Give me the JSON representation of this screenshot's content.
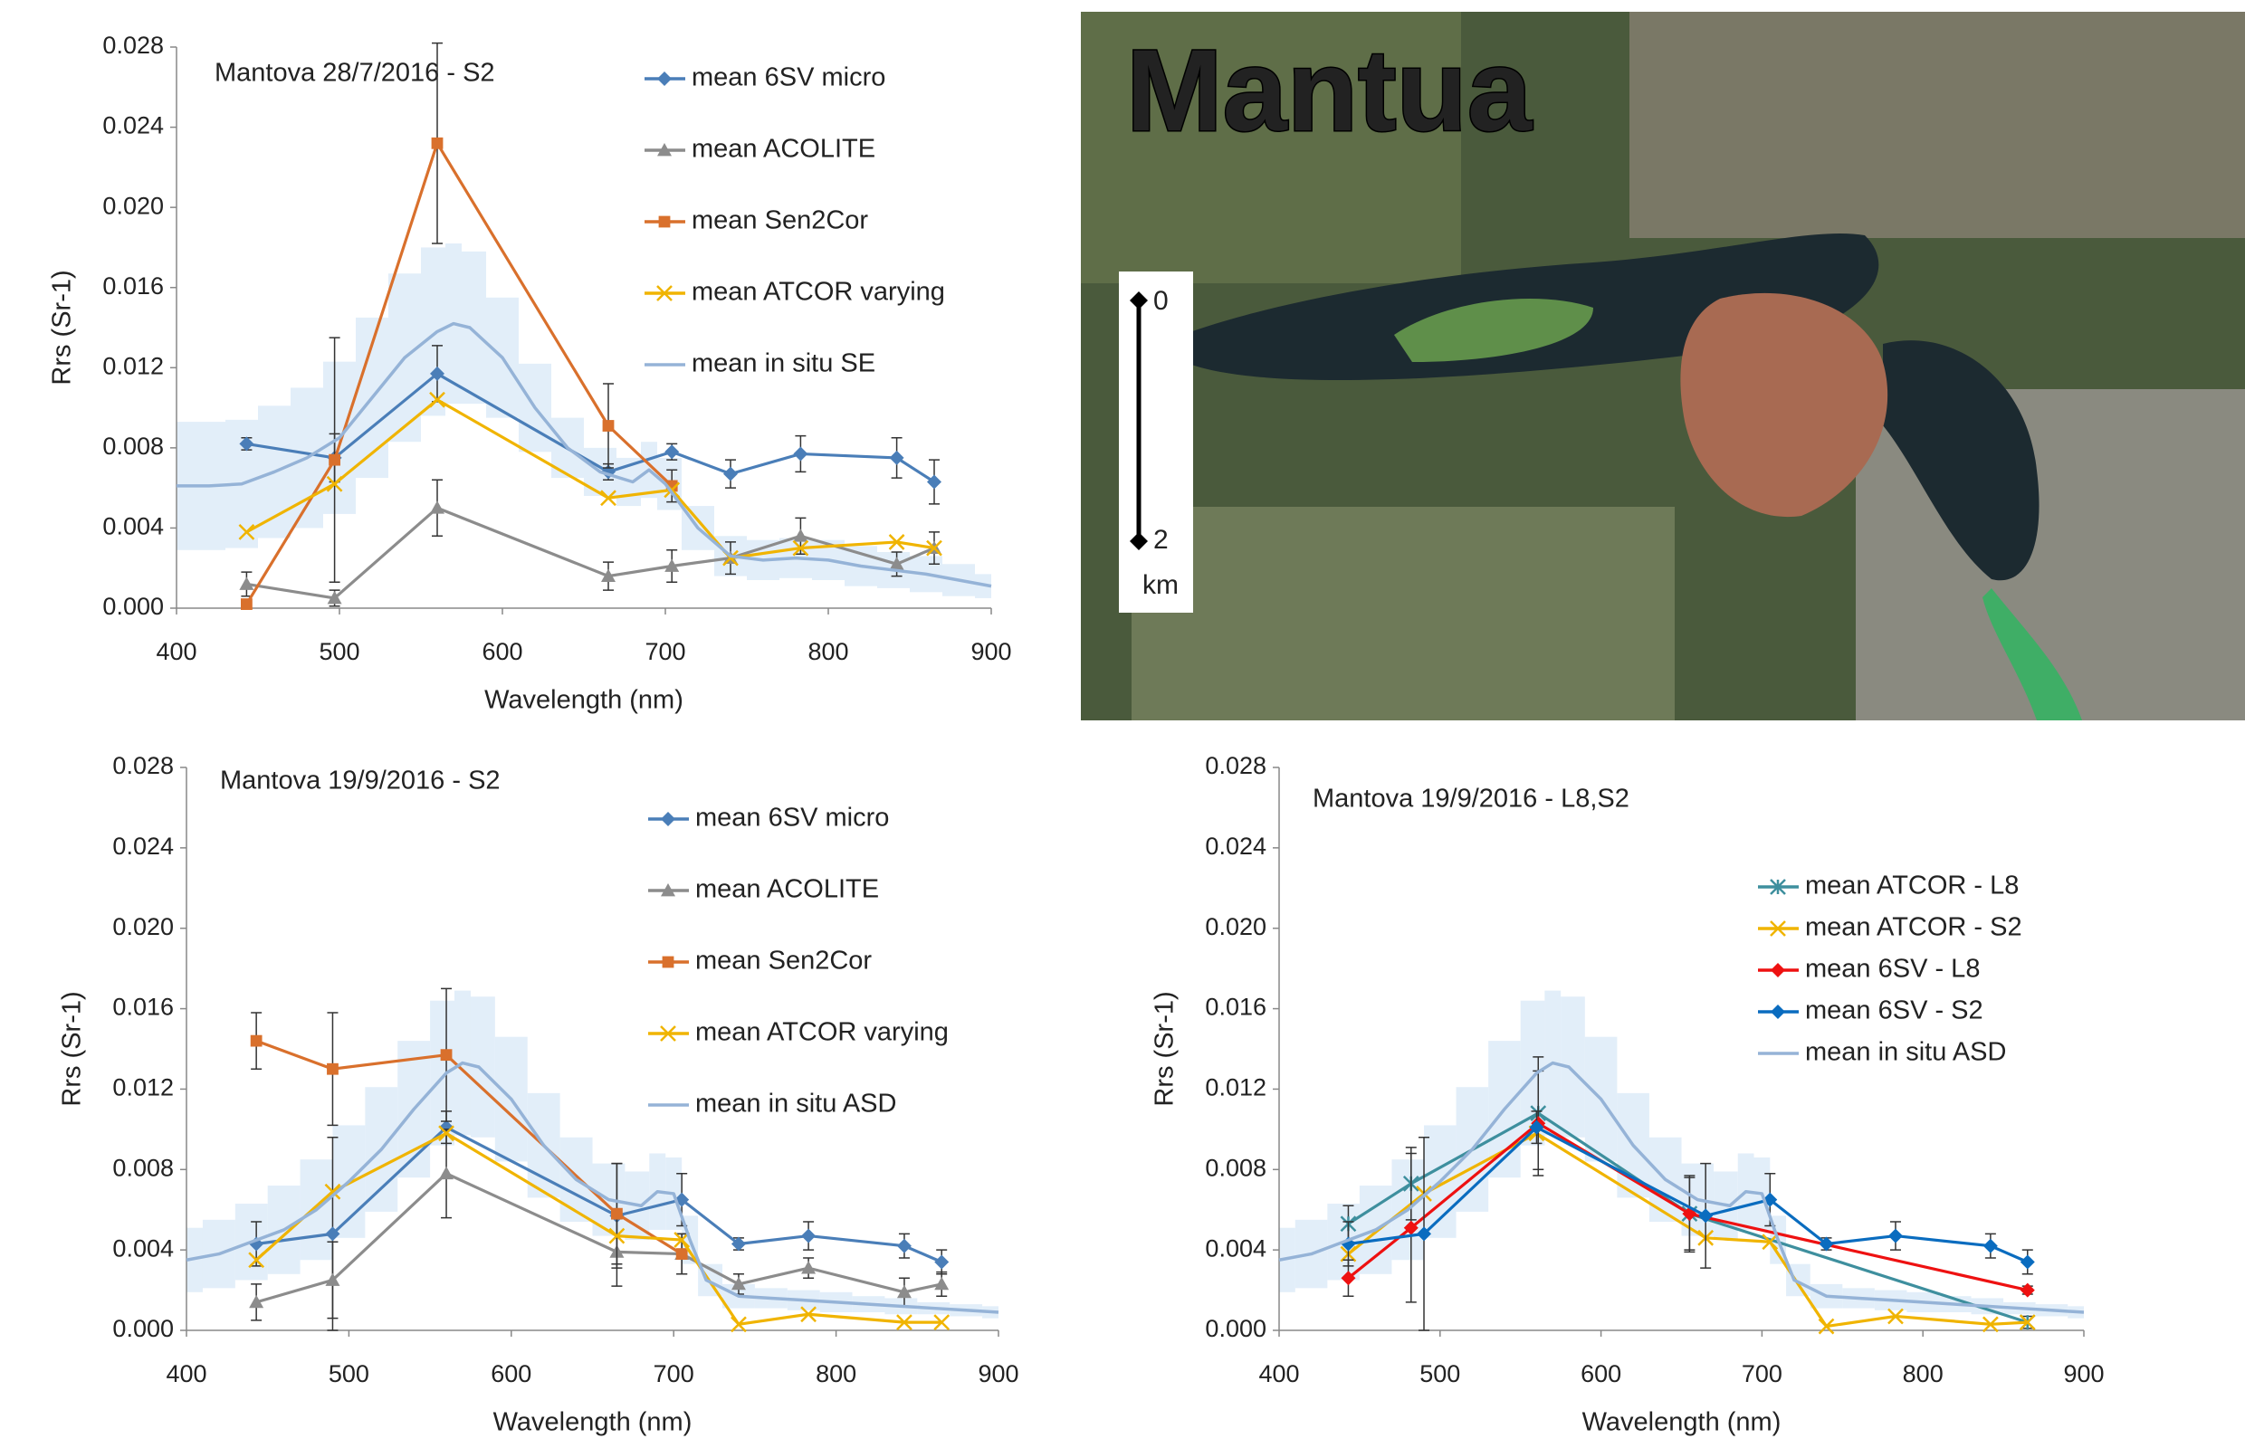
{
  "chart_data": [
    {
      "type": "line",
      "title": "Mantova 28/7/2016 - S2",
      "x_label": "Wavelength (nm)",
      "y_label": "Rrs (Sr-1)",
      "xlim": [
        400,
        900
      ],
      "xticks": [
        400,
        500,
        600,
        700,
        800,
        900
      ],
      "ylim": [
        0,
        0.028
      ],
      "yticks": [
        {
          "value": 0,
          "label": "0.000"
        },
        0.004,
        0.008,
        0.012,
        0.016,
        {
          "value": 0.02,
          "label": "0.020"
        },
        0.024,
        0.028
      ],
      "grid": false,
      "legend": "upper right",
      "series": [
        {
          "name": "mean 6SV micro",
          "color": "#4a7eb8",
          "marker": "diamond",
          "x": [
            443,
            497,
            560,
            665,
            704,
            740,
            783,
            842,
            865
          ],
          "values": [
            0.0082,
            0.0075,
            0.0117,
            0.0068,
            0.0078,
            0.0067,
            0.0077,
            0.0075,
            0.0063
          ],
          "errors": [
            0.0003,
            0.0012,
            0.0014,
            0.0004,
            0.0004,
            0.0007,
            0.0009,
            0.001,
            0.0011
          ]
        },
        {
          "name": "mean ACOLITE",
          "color": "#8c8c8c",
          "marker": "triangle",
          "x": [
            443,
            497,
            560,
            665,
            704,
            740,
            783,
            842,
            865
          ],
          "values": [
            0.0012,
            0.0005,
            0.005,
            0.0016,
            0.0021,
            0.0025,
            0.0036,
            0.0022,
            0.003
          ],
          "errors": [
            0.0006,
            0.0004,
            0.0014,
            0.0007,
            0.0008,
            0.0008,
            0.0009,
            0.0006,
            0.0008
          ]
        },
        {
          "name": "mean Sen2Cor",
          "color": "#d9702c",
          "marker": "square",
          "x": [
            443,
            497,
            560,
            665,
            704
          ],
          "values": [
            0.0002,
            0.0074,
            0.0232,
            0.0091,
            0.0061
          ],
          "errors": [
            0.0001,
            0.0061,
            0.005,
            0.0021,
            0.0008
          ]
        },
        {
          "name": "mean ATCOR varying",
          "color": "#f0b400",
          "marker": "x",
          "x": [
            443,
            497,
            560,
            665,
            704,
            740,
            783,
            842,
            865
          ],
          "values": [
            0.0038,
            0.0062,
            0.0104,
            0.0055,
            0.0059,
            0.0025,
            0.003,
            0.0033,
            0.003
          ]
        },
        {
          "name": "mean in situ SE",
          "color": "#95b3d7",
          "marker": "none",
          "x": [
            400,
            420,
            440,
            460,
            480,
            500,
            520,
            540,
            560,
            570,
            580,
            600,
            620,
            640,
            660,
            680,
            690,
            700,
            720,
            740,
            760,
            780,
            800,
            820,
            840,
            860,
            880,
            900
          ],
          "values": [
            0.0061,
            0.0061,
            0.0062,
            0.0068,
            0.0075,
            0.0085,
            0.0105,
            0.0125,
            0.0138,
            0.0142,
            0.014,
            0.0125,
            0.01,
            0.008,
            0.0068,
            0.0063,
            0.0069,
            0.0062,
            0.004,
            0.0026,
            0.0024,
            0.0025,
            0.0024,
            0.0021,
            0.0019,
            0.0017,
            0.0014,
            0.0011
          ],
          "spread": [
            0.0032,
            0.0032,
            0.0032,
            0.0033,
            0.0035,
            0.0038,
            0.004,
            0.0042,
            0.0042,
            0.004,
            0.0038,
            0.003,
            0.0022,
            0.0015,
            0.0012,
            0.0012,
            0.0014,
            0.0013,
            0.0011,
            0.001,
            0.001,
            0.001,
            0.001,
            0.001,
            0.0009,
            0.0009,
            0.0008,
            0.0006
          ]
        }
      ]
    },
    {
      "type": "line",
      "title": "Mantova 19/9/2016 - S2",
      "x_label": "Wavelength (nm)",
      "y_label": "Rrs (Sr-1)",
      "xlim": [
        400,
        900
      ],
      "xticks": [
        400,
        500,
        600,
        700,
        800,
        900
      ],
      "ylim": [
        0,
        0.028
      ],
      "yticks": [
        {
          "value": 0,
          "label": "0.000"
        },
        0.004,
        0.008,
        0.012,
        0.016,
        {
          "value": 0.02,
          "label": "0.020"
        },
        0.024,
        0.028
      ],
      "grid": false,
      "legend": "upper right",
      "series": [
        {
          "name": "mean 6SV micro",
          "color": "#4a7eb8",
          "marker": "diamond",
          "x": [
            443,
            490,
            560,
            665,
            705,
            740,
            783,
            842,
            865
          ],
          "values": [
            0.0043,
            0.0048,
            0.0101,
            0.0057,
            0.0065,
            0.0043,
            0.0047,
            0.0042,
            0.0034
          ],
          "errors": [
            0.0011,
            0.0048,
            0.0008,
            0.0026,
            0.0013,
            0.0003,
            0.0007,
            0.0006,
            0.0006
          ]
        },
        {
          "name": "mean ACOLITE",
          "color": "#8c8c8c",
          "marker": "triangle",
          "x": [
            443,
            490,
            560,
            665,
            705,
            740,
            783,
            842,
            865
          ],
          "values": [
            0.0014,
            0.0025,
            0.0078,
            0.0039,
            0.0038,
            0.0023,
            0.0031,
            0.0019,
            0.0023
          ],
          "errors": [
            0.0009,
            0.0019,
            0.0022,
            0.0017,
            0.001,
            0.0005,
            0.0005,
            0.0007,
            0.0006
          ]
        },
        {
          "name": "mean Sen2Cor",
          "color": "#d9702c",
          "marker": "square",
          "x": [
            443,
            490,
            560,
            665,
            705
          ],
          "values": [
            0.0144,
            0.013,
            0.0137,
            0.0058,
            0.0038
          ],
          "errors": [
            0.0014,
            0.0028,
            0.0033,
            0.0025,
            0.001
          ]
        },
        {
          "name": "mean ATCOR varying",
          "color": "#f0b400",
          "marker": "x",
          "x": [
            443,
            490,
            560,
            665,
            705,
            740,
            783,
            842,
            865
          ],
          "values": [
            0.0035,
            0.0069,
            0.0098,
            0.0047,
            0.0045,
            0.0003,
            0.0008,
            0.0004,
            0.0004
          ]
        },
        {
          "name": "mean in situ ASD",
          "color": "#95b3d7",
          "marker": "none",
          "x": [
            400,
            420,
            440,
            460,
            480,
            500,
            520,
            540,
            560,
            570,
            580,
            600,
            620,
            640,
            660,
            680,
            690,
            700,
            710,
            720,
            740,
            760,
            780,
            800,
            820,
            840,
            860,
            880,
            900
          ],
          "values": [
            0.0035,
            0.0038,
            0.0044,
            0.005,
            0.006,
            0.0074,
            0.009,
            0.011,
            0.0128,
            0.0133,
            0.0131,
            0.0115,
            0.0092,
            0.0075,
            0.0065,
            0.0062,
            0.0069,
            0.0068,
            0.0045,
            0.0025,
            0.0017,
            0.0016,
            0.0015,
            0.0014,
            0.0013,
            0.0012,
            0.0011,
            0.001,
            0.0009
          ],
          "spread": [
            0.0016,
            0.0017,
            0.0019,
            0.0022,
            0.0025,
            0.0028,
            0.0031,
            0.0034,
            0.0036,
            0.0036,
            0.0035,
            0.0031,
            0.0026,
            0.0021,
            0.0018,
            0.0017,
            0.0019,
            0.0018,
            0.0012,
            0.0008,
            0.0006,
            0.0005,
            0.0005,
            0.0005,
            0.0004,
            0.0004,
            0.0003,
            0.0003,
            0.0003
          ]
        }
      ]
    },
    {
      "type": "line",
      "title": "Mantova 19/9/2016 - L8,S2",
      "x_label": "Wavelength (nm)",
      "y_label": "Rrs (Sr-1)",
      "xlim": [
        400,
        900
      ],
      "xticks": [
        400,
        500,
        600,
        700,
        800,
        900
      ],
      "ylim": [
        0,
        0.028
      ],
      "yticks": [
        {
          "value": 0,
          "label": "0.000"
        },
        0.004,
        0.008,
        0.012,
        0.016,
        {
          "value": 0.02,
          "label": "0.020"
        },
        0.024,
        0.028
      ],
      "grid": false,
      "legend": "center right",
      "series": [
        {
          "name": "mean ATCOR - L8",
          "color": "#3e8f9e",
          "marker": "star",
          "x": [
            443,
            482,
            561,
            655,
            865
          ],
          "values": [
            0.0053,
            0.0073,
            0.0108,
            0.0058,
            0.0004
          ],
          "errors": [
            0.0009,
            0.0018,
            0.0028,
            0.0018,
            0.0003
          ]
        },
        {
          "name": "mean ATCOR - S2",
          "color": "#f0b400",
          "marker": "x",
          "x": [
            443,
            490,
            560,
            665,
            705,
            740,
            783,
            842,
            865
          ],
          "values": [
            0.0038,
            0.0068,
            0.0098,
            0.0046,
            0.0044,
            0.0002,
            0.0007,
            0.0003,
            0.0004
          ]
        },
        {
          "name": "mean 6SV - L8",
          "color": "#ee1111",
          "marker": "diamond",
          "x": [
            443,
            482,
            561,
            655,
            865
          ],
          "values": [
            0.0026,
            0.0051,
            0.0103,
            0.0058,
            0.002
          ],
          "errors": [
            0.0009,
            0.0037,
            0.0026,
            0.0019,
            0.0002
          ]
        },
        {
          "name": "mean 6SV - S2",
          "color": "#0a6cbf",
          "marker": "diamond",
          "x": [
            443,
            490,
            560,
            665,
            705,
            740,
            783,
            842,
            865
          ],
          "values": [
            0.0043,
            0.0048,
            0.0101,
            0.0057,
            0.0065,
            0.0043,
            0.0047,
            0.0042,
            0.0034
          ],
          "errors": [
            0.0011,
            0.0048,
            0.0008,
            0.0026,
            0.0013,
            0.0003,
            0.0007,
            0.0006,
            0.0006
          ]
        },
        {
          "name": "mean in situ ASD",
          "color": "#95b3d7",
          "marker": "none",
          "x": [
            400,
            420,
            440,
            460,
            480,
            500,
            520,
            540,
            560,
            570,
            580,
            600,
            620,
            640,
            660,
            680,
            690,
            700,
            710,
            720,
            740,
            760,
            780,
            800,
            820,
            840,
            860,
            880,
            900
          ],
          "values": [
            0.0035,
            0.0038,
            0.0044,
            0.005,
            0.006,
            0.0074,
            0.009,
            0.011,
            0.0128,
            0.0133,
            0.0131,
            0.0115,
            0.0092,
            0.0075,
            0.0065,
            0.0062,
            0.0069,
            0.0068,
            0.0045,
            0.0025,
            0.0017,
            0.0016,
            0.0015,
            0.0014,
            0.0013,
            0.0012,
            0.0011,
            0.001,
            0.0009
          ],
          "spread": [
            0.0016,
            0.0017,
            0.0019,
            0.0022,
            0.0025,
            0.0028,
            0.0031,
            0.0034,
            0.0036,
            0.0036,
            0.0035,
            0.0031,
            0.0026,
            0.0021,
            0.0018,
            0.0017,
            0.0019,
            0.0018,
            0.0012,
            0.0008,
            0.0006,
            0.0005,
            0.0005,
            0.0005,
            0.0004,
            0.0004,
            0.0003,
            0.0003,
            0.0003
          ]
        }
      ]
    }
  ],
  "map": {
    "title": "Mantua",
    "scale_ticks": [
      0,
      2
    ],
    "scale_unit": "km"
  }
}
